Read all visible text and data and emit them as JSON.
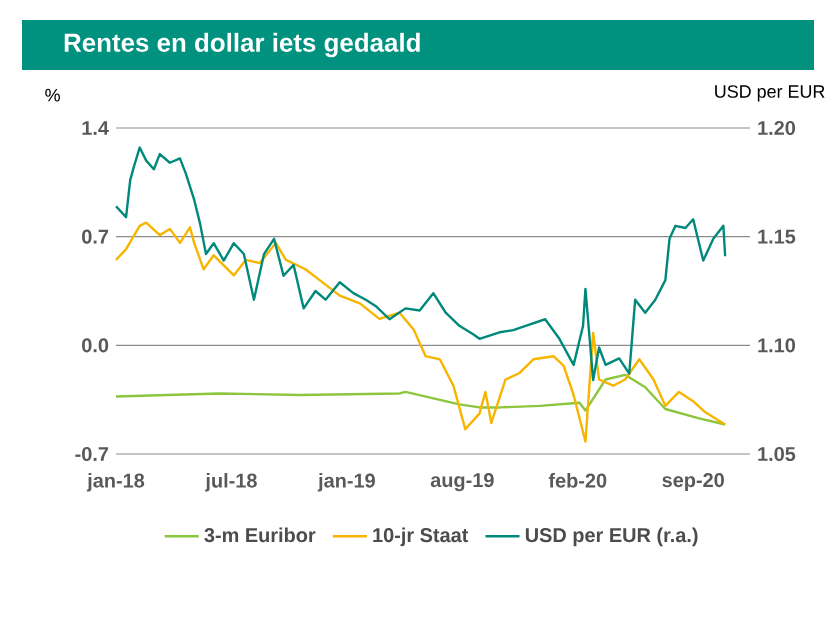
{
  "chart_data": {
    "type": "line",
    "title": "Rentes en dollar iets gedaald",
    "ylabel": "%",
    "y2label": "USD per EUR",
    "xlim": [
      "2018-01-01",
      "2020-12-07"
    ],
    "xticks": [
      {
        "value": "2018-01-01",
        "label": "jan-18"
      },
      {
        "value": "2018-07-15",
        "label": "jul-18"
      },
      {
        "value": "2019-01-26",
        "label": "jan-19"
      },
      {
        "value": "2019-08-09",
        "label": "aug-19"
      },
      {
        "value": "2020-02-20",
        "label": "feb-20"
      },
      {
        "value": "2020-09-02",
        "label": "sep-20"
      }
    ],
    "ylim": [
      -0.7,
      1.4
    ],
    "yticks": [
      -0.7,
      {
        "value": 0,
        "label": "0.0"
      },
      0.7,
      1.4
    ],
    "y2lim": [
      1.05,
      1.2
    ],
    "y2ticks": [
      1.05,
      {
        "value": 1.1,
        "label": "1.10"
      },
      1.15,
      {
        "value": 1.2,
        "label": "1.20"
      }
    ],
    "grid": "y",
    "legend": "bottom",
    "marker": "none",
    "line_style": "solid",
    "series": [
      {
        "name": "3-m Euribor",
        "color": "#8cc63f",
        "x": [
          "2018-01-01",
          "2018-06-25",
          "2018-11-07",
          "2019-04-25",
          "2019-05-05",
          "2019-08-04",
          "2019-09-07",
          "2019-10-11",
          "2019-12-18",
          "2020-02-23",
          "2020-03-04",
          "2020-04-07",
          "2020-05-10",
          "2020-06-13",
          "2020-07-17",
          "2020-09-12",
          "2020-10-26"
        ],
        "values": [
          -0.33,
          -0.31,
          -0.32,
          -0.31,
          -0.3,
          -0.38,
          -0.4,
          -0.4,
          -0.39,
          -0.37,
          -0.42,
          -0.22,
          -0.19,
          -0.27,
          -0.41,
          -0.47,
          -0.51
        ]
      },
      {
        "name": "10-jr Staat",
        "color": "#f7b500",
        "x": [
          "2018-01-01",
          "2018-01-18",
          "2018-02-10",
          "2018-02-21",
          "2018-03-16",
          "2018-04-02",
          "2018-04-19",
          "2018-05-06",
          "2018-05-13",
          "2018-05-29",
          "2018-06-15",
          "2018-07-19",
          "2018-08-08",
          "2018-09-01",
          "2018-09-28",
          "2018-10-15",
          "2018-11-17",
          "2018-12-11",
          "2019-01-14",
          "2019-02-17",
          "2019-03-22",
          "2019-04-25",
          "2019-05-19",
          "2019-06-08",
          "2019-07-02",
          "2019-07-25",
          "2019-08-14",
          "2019-09-07",
          "2019-09-17",
          "2019-09-27",
          "2019-10-21",
          "2019-11-13",
          "2019-12-07",
          "2020-01-10",
          "2020-01-27",
          "2020-02-13",
          "2020-03-04",
          "2020-03-17",
          "2020-03-27",
          "2020-04-20",
          "2020-05-10",
          "2020-06-03",
          "2020-06-27",
          "2020-07-17",
          "2020-08-09",
          "2020-09-02",
          "2020-09-22",
          "2020-10-26"
        ],
        "values": [
          0.55,
          0.62,
          0.77,
          0.79,
          0.71,
          0.75,
          0.66,
          0.76,
          0.66,
          0.49,
          0.58,
          0.45,
          0.55,
          0.53,
          0.66,
          0.55,
          0.49,
          0.42,
          0.32,
          0.27,
          0.17,
          0.21,
          0.1,
          -0.07,
          -0.09,
          -0.26,
          -0.54,
          -0.44,
          -0.3,
          -0.5,
          -0.22,
          -0.18,
          -0.09,
          -0.07,
          -0.13,
          -0.32,
          -0.62,
          0.08,
          -0.22,
          -0.26,
          -0.22,
          -0.09,
          -0.22,
          -0.39,
          -0.3,
          -0.36,
          -0.43,
          -0.51
        ]
      },
      {
        "name": "USD per EUR (r.a.)",
        "color": "#00897b",
        "axis": "y2",
        "x": [
          "2018-01-01",
          "2018-01-18",
          "2018-01-25",
          "2018-01-31",
          "2018-02-10",
          "2018-02-21",
          "2018-03-06",
          "2018-03-16",
          "2018-04-02",
          "2018-04-19",
          "2018-04-29",
          "2018-05-13",
          "2018-05-23",
          "2018-06-02",
          "2018-06-15",
          "2018-07-02",
          "2018-07-19",
          "2018-08-05",
          "2018-08-22",
          "2018-09-08",
          "2018-09-25",
          "2018-10-11",
          "2018-10-28",
          "2018-11-14",
          "2018-12-04",
          "2018-12-21",
          "2019-01-14",
          "2019-02-06",
          "2019-02-27",
          "2019-03-16",
          "2019-04-08",
          "2019-05-05",
          "2019-05-29",
          "2019-06-21",
          "2019-07-12",
          "2019-08-04",
          "2019-08-28",
          "2019-09-07",
          "2019-10-11",
          "2019-11-03",
          "2019-11-24",
          "2019-12-27",
          "2020-01-20",
          "2020-02-13",
          "2020-02-29",
          "2020-03-04",
          "2020-03-17",
          "2020-03-27",
          "2020-04-07",
          "2020-04-30",
          "2020-05-17",
          "2020-05-27",
          "2020-06-13",
          "2020-06-30",
          "2020-07-17",
          "2020-07-24",
          "2020-08-03",
          "2020-08-20",
          "2020-09-02",
          "2020-09-19",
          "2020-10-06",
          "2020-10-23",
          "2020-10-26"
        ],
        "values": [
          1.164,
          1.159,
          1.176,
          1.182,
          1.191,
          1.185,
          1.181,
          1.188,
          1.184,
          1.186,
          1.179,
          1.167,
          1.156,
          1.142,
          1.147,
          1.139,
          1.147,
          1.142,
          1.121,
          1.142,
          1.149,
          1.132,
          1.137,
          1.117,
          1.125,
          1.121,
          1.129,
          1.124,
          1.121,
          1.118,
          1.112,
          1.117,
          1.116,
          1.124,
          1.115,
          1.109,
          1.105,
          1.103,
          1.106,
          1.107,
          1.109,
          1.112,
          1.103,
          1.091,
          1.109,
          1.126,
          1.084,
          1.099,
          1.091,
          1.094,
          1.087,
          1.121,
          1.115,
          1.121,
          1.13,
          1.149,
          1.155,
          1.154,
          1.158,
          1.139,
          1.149,
          1.155,
          1.141
        ]
      }
    ]
  }
}
